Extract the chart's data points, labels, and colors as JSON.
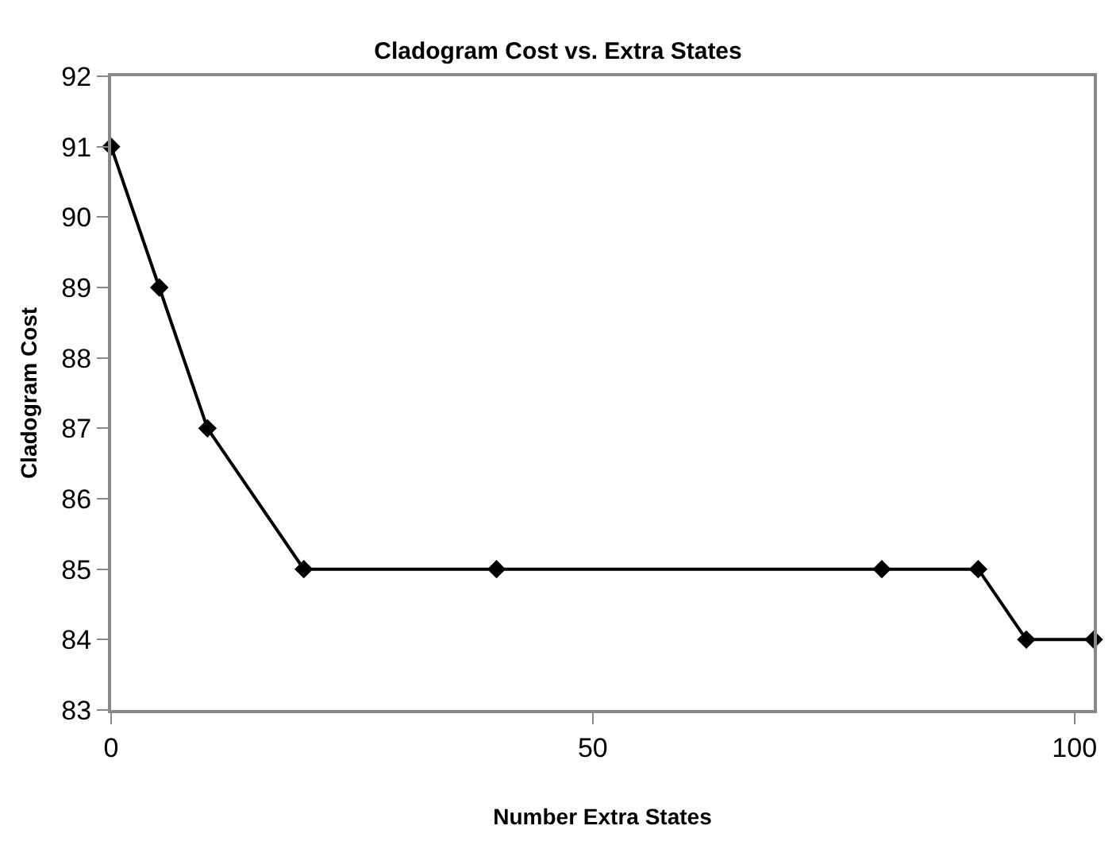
{
  "chart_data": {
    "type": "line",
    "title": "Cladogram Cost vs. Extra States",
    "xlabel": "Number Extra States",
    "ylabel": "Cladogram Cost",
    "x": [
      0,
      5,
      10,
      20,
      40,
      80,
      90,
      95,
      102
    ],
    "series": [
      {
        "color": "#000000",
        "values": [
          91,
          89,
          87,
          85,
          85,
          85,
          85,
          84,
          84
        ]
      }
    ],
    "xlim": [
      0,
      102
    ],
    "xticks": [
      0,
      50,
      100
    ],
    "ylim": [
      83,
      92
    ],
    "yticks": [
      83,
      84,
      85,
      86,
      87,
      88,
      89,
      90,
      91,
      92
    ],
    "marker": "diamond",
    "line_style": "solid"
  }
}
